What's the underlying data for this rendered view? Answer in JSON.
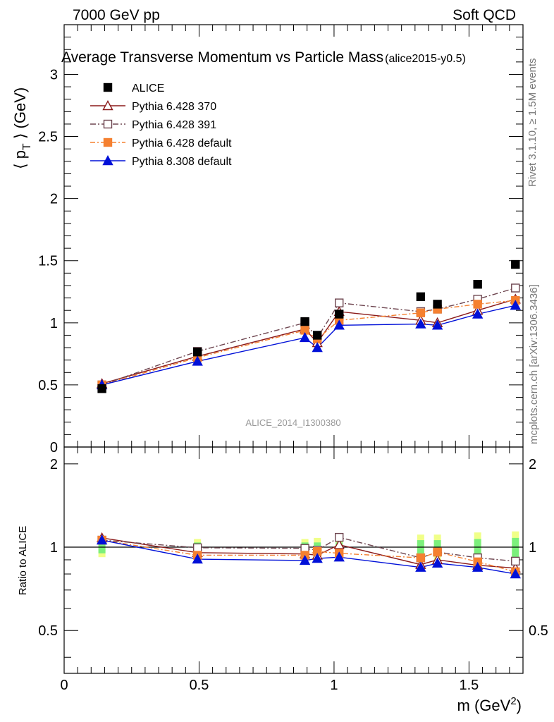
{
  "header": {
    "left": "7000 GeV pp",
    "right": "Soft QCD"
  },
  "side_labels": {
    "rivet": "Rivet 3.1.10, ≥ 1.5M events",
    "mcplots": "mcplots.cern.ch [arXiv:1306.3436]"
  },
  "chart_data": {
    "type": "line",
    "title": "Average Transverse Momentum vs Particle Mass",
    "title_suffix": "(alice2015-y0.5)",
    "watermark": "ALICE_2014_I1300380",
    "xlabel": "m (GeV",
    "xlabel_sup": "2",
    "xlabel_end": ")",
    "ylabel_main": "⟨ p",
    "ylabel_sub": "T",
    "ylabel_end": " ⟩ (GeV)",
    "ratio_ylabel": "Ratio to ALICE",
    "xlim": [
      0,
      1.7
    ],
    "ylim": [
      0,
      3.4
    ],
    "ratio_ylim": [
      0.35,
      2.3
    ],
    "x_ticks": [
      "0",
      "0.5",
      "1",
      "1.5"
    ],
    "y_ticks": [
      "0",
      "0.5",
      "1",
      "1.5",
      "2",
      "2.5",
      "3"
    ],
    "ratio_y_ticks": [
      "0.5",
      "1",
      "2"
    ],
    "x": [
      0.14,
      0.494,
      0.892,
      0.938,
      1.019,
      1.321,
      1.383,
      1.532,
      1.672
    ],
    "data": {
      "name": "ALICE",
      "values": [
        0.47,
        0.765,
        1.01,
        0.9,
        1.07,
        1.21,
        1.15,
        1.31,
        1.47
      ],
      "ratio_band_inner": [
        0.05,
        0.04,
        0.04,
        0.04,
        0.04,
        0.06,
        0.06,
        0.07,
        0.08
      ],
      "ratio_band_outer": [
        0.08,
        0.07,
        0.07,
        0.08,
        0.07,
        0.11,
        0.11,
        0.13,
        0.14
      ]
    },
    "series": [
      {
        "name": "Pythia 6.428 370",
        "color": "#8b1a1a",
        "marker": "triangle-open",
        "dash": "",
        "values": [
          0.51,
          0.73,
          0.95,
          0.84,
          1.09,
          1.02,
          1.0,
          1.1,
          1.19
        ],
        "ratio": [
          1.08,
          0.955,
          0.945,
          0.935,
          1.02,
          0.865,
          0.9,
          0.86,
          0.84
        ]
      },
      {
        "name": "Pythia 6.428 391",
        "color": "#6e4650",
        "marker": "square-open",
        "dash": "8,3,2,3",
        "values": [
          0.5,
          0.77,
          1.0,
          0.88,
          1.16,
          1.09,
          1.11,
          1.19,
          1.28
        ],
        "ratio": [
          1.06,
          0.995,
          0.99,
          0.975,
          1.085,
          0.915,
          0.96,
          0.915,
          0.89
        ]
      },
      {
        "name": "Pythia 6.428 default",
        "color": "#f58030",
        "marker": "square",
        "dash": "7,3,2,3",
        "values": [
          0.5,
          0.72,
          0.94,
          0.87,
          1.02,
          1.08,
          1.11,
          1.15,
          1.18
        ],
        "ratio": [
          1.06,
          0.935,
          0.935,
          0.965,
          0.95,
          0.915,
          0.96,
          0.885,
          0.815
        ]
      },
      {
        "name": "Pythia 8.308 default",
        "color": "#0010d8",
        "marker": "triangle",
        "dash": "",
        "values": [
          0.5,
          0.69,
          0.88,
          0.8,
          0.98,
          0.99,
          0.98,
          1.07,
          1.14
        ],
        "ratio": [
          1.06,
          0.905,
          0.895,
          0.91,
          0.92,
          0.845,
          0.875,
          0.845,
          0.8
        ]
      }
    ],
    "colors": {
      "data": "#000000",
      "band_inner": "#7cf07c",
      "band_outer": "#f0ff88"
    }
  }
}
